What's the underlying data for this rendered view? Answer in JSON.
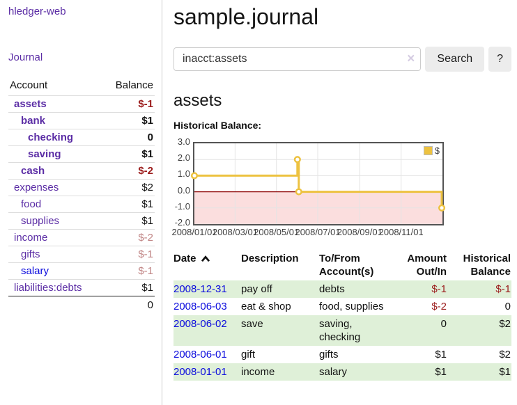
{
  "sidebar": {
    "brand": "hledger-web",
    "nav": {
      "journal": "Journal"
    },
    "accounts_table": {
      "headers": {
        "account": "Account",
        "balance": "Balance"
      },
      "rows": [
        {
          "name": "assets",
          "balance": "$-1",
          "level": 0,
          "bold": true
        },
        {
          "name": "bank",
          "balance": "$1",
          "level": 1,
          "bold": true
        },
        {
          "name": "checking",
          "balance": "0",
          "level": 2,
          "bold": true
        },
        {
          "name": "saving",
          "balance": "$1",
          "level": 2,
          "bold": true
        },
        {
          "name": "cash",
          "balance": "$-2",
          "level": 1,
          "bold": true
        },
        {
          "name": "expenses",
          "balance": "$2",
          "level": 0,
          "bold": false
        },
        {
          "name": "food",
          "balance": "$1",
          "level": 1,
          "bold": false
        },
        {
          "name": "supplies",
          "balance": "$1",
          "level": 1,
          "bold": false
        },
        {
          "name": "income",
          "balance": "$-2",
          "level": 0,
          "bold": false
        },
        {
          "name": "gifts",
          "balance": "$-1",
          "level": 1,
          "bold": false
        },
        {
          "name": "salary",
          "balance": "$-1",
          "level": 1,
          "bold": false,
          "link_color": "blue"
        },
        {
          "name": "liabilities:debts",
          "balance": "$1",
          "level": 0,
          "bold": false
        }
      ],
      "total": "0"
    }
  },
  "header": {
    "title": "sample.journal"
  },
  "search": {
    "value": "inacct:assets",
    "clear_icon": "×",
    "button": "Search",
    "help_button": "?"
  },
  "account_page": {
    "title": "assets",
    "chart_label": "Historical Balance:"
  },
  "chart_data": {
    "type": "line",
    "step": true,
    "series": [
      {
        "name": "$",
        "color": "#edc240",
        "points": [
          [
            "2008-01-01",
            1
          ],
          [
            "2008-06-01",
            2
          ],
          [
            "2008-06-03",
            0
          ],
          [
            "2008-12-31",
            -1
          ]
        ]
      }
    ],
    "ylim": [
      -2,
      3
    ],
    "yticks": [
      "3.0",
      "2.0",
      "1.0",
      "0.0",
      "-1.0",
      "-2.0"
    ],
    "xlim": [
      "2008-01-01",
      "2009-01-01"
    ],
    "xticks": [
      "2008/01/01",
      "2008/03/01",
      "2008/05/01",
      "2008/07/01",
      "2008/09/01",
      "2008/11/01"
    ],
    "legend_position": "top-right",
    "grid": true,
    "grid_color": "#e4e4e4",
    "negative_fill": "#fbdede",
    "zero_line_color": "#8b0000",
    "plot_border_color": "#545454"
  },
  "register_table": {
    "headers": {
      "date": "Date",
      "description": "Description",
      "tofrom": "To/From Account(s)",
      "amount": "Amount Out/In",
      "balance": "Historical Balance"
    },
    "rows": [
      {
        "date": "2008-12-31",
        "description": "pay off",
        "accounts": "debts",
        "amount": "$-1",
        "balance": "$-1"
      },
      {
        "date": "2008-06-03",
        "description": "eat & shop",
        "accounts": "food, supplies",
        "amount": "$-2",
        "balance": "0"
      },
      {
        "date": "2008-06-02",
        "description": "save",
        "accounts": "saving, checking",
        "amount": "0",
        "balance": "$2"
      },
      {
        "date": "2008-06-01",
        "description": "gift",
        "accounts": "gifts",
        "amount": "$1",
        "balance": "$2"
      },
      {
        "date": "2008-01-01",
        "description": "income",
        "accounts": "salary",
        "amount": "$1",
        "balance": "$1"
      }
    ]
  },
  "colors": {
    "link_purple": "#5b2da5",
    "link_blue": "#0b0bdd",
    "negative_strong": "#9b1c1c",
    "negative_soft": "#c08484",
    "row_stripe_green": "#dff0d8",
    "series_gold": "#edc240"
  }
}
